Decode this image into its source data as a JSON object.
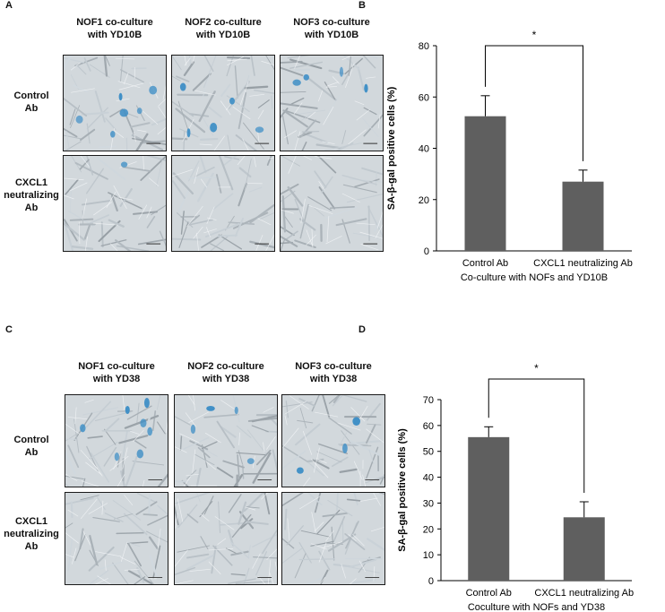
{
  "panels": {
    "A": {
      "letter": "A",
      "columns": [
        "NOF1 co-culture\nwith YD10B",
        "NOF2 co-culture\nwith YD10B",
        "NOF3 co-culture\nwith YD10B"
      ],
      "rows": [
        "Control\nAb",
        "CXCL1\nneutralizing\nAb"
      ]
    },
    "B": {
      "letter": "B"
    },
    "C": {
      "letter": "C",
      "columns": [
        "NOF1 co-culture\nwith YD38",
        "NOF2 co-culture\nwith YD38",
        "NOF3 co-culture\nwith YD38"
      ],
      "rows": [
        "Control\nAb",
        "CXCL1\nneutralizing\nAb"
      ]
    },
    "D": {
      "letter": "D"
    }
  },
  "colors": {
    "bar": "#5f5f5f",
    "stain": "#3f8fc6",
    "cell_bg": "#d2d8dc"
  },
  "chart_data": [
    {
      "type": "bar",
      "categories": [
        "Control Ab",
        "CXCL1 neutralizing Ab"
      ],
      "values": [
        52.5,
        27
      ],
      "errors": [
        8,
        4.5
      ],
      "xlabel": "Co-culture with NOFs and YD10B",
      "ylabel": "SA-β-gal positive cells (%)",
      "ylim": [
        0,
        80
      ],
      "yticks": [
        0,
        20,
        40,
        60,
        80
      ],
      "significance": "*",
      "grid": false
    },
    {
      "type": "bar",
      "categories": [
        "Control Ab",
        "CXCL1 neutralizing Ab"
      ],
      "values": [
        55.5,
        24.5
      ],
      "errors": [
        4,
        6
      ],
      "xlabel": "Coculture with NOFs and YD38",
      "ylabel": "SA-β-gal positive cells (%)",
      "ylim": [
        0,
        70
      ],
      "yticks": [
        0,
        10,
        20,
        30,
        40,
        50,
        60,
        70
      ],
      "significance": "*",
      "grid": false
    }
  ]
}
